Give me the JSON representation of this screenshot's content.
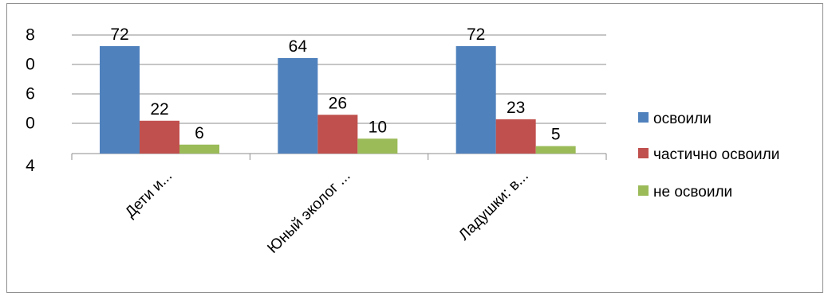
{
  "chart_data": {
    "type": "bar",
    "categories": [
      "Дети и...",
      "Юный эколог ...",
      "Ладушки: в..."
    ],
    "series": [
      {
        "name": "освоили",
        "values": [
          72,
          64,
          72
        ],
        "color": "#4F81BD"
      },
      {
        "name": "частично  освоили",
        "values": [
          22,
          26,
          23
        ],
        "color": "#C0504D"
      },
      {
        "name": "не освоили",
        "values": [
          6,
          10,
          5
        ],
        "color": "#9BBB59"
      }
    ],
    "y_tick_lines": [
      [
        "8",
        "0"
      ],
      [
        "6",
        "0"
      ],
      [
        "4"
      ]
    ],
    "ylim": [
      0,
      80
    ],
    "grid": true,
    "legend_position": "right"
  }
}
